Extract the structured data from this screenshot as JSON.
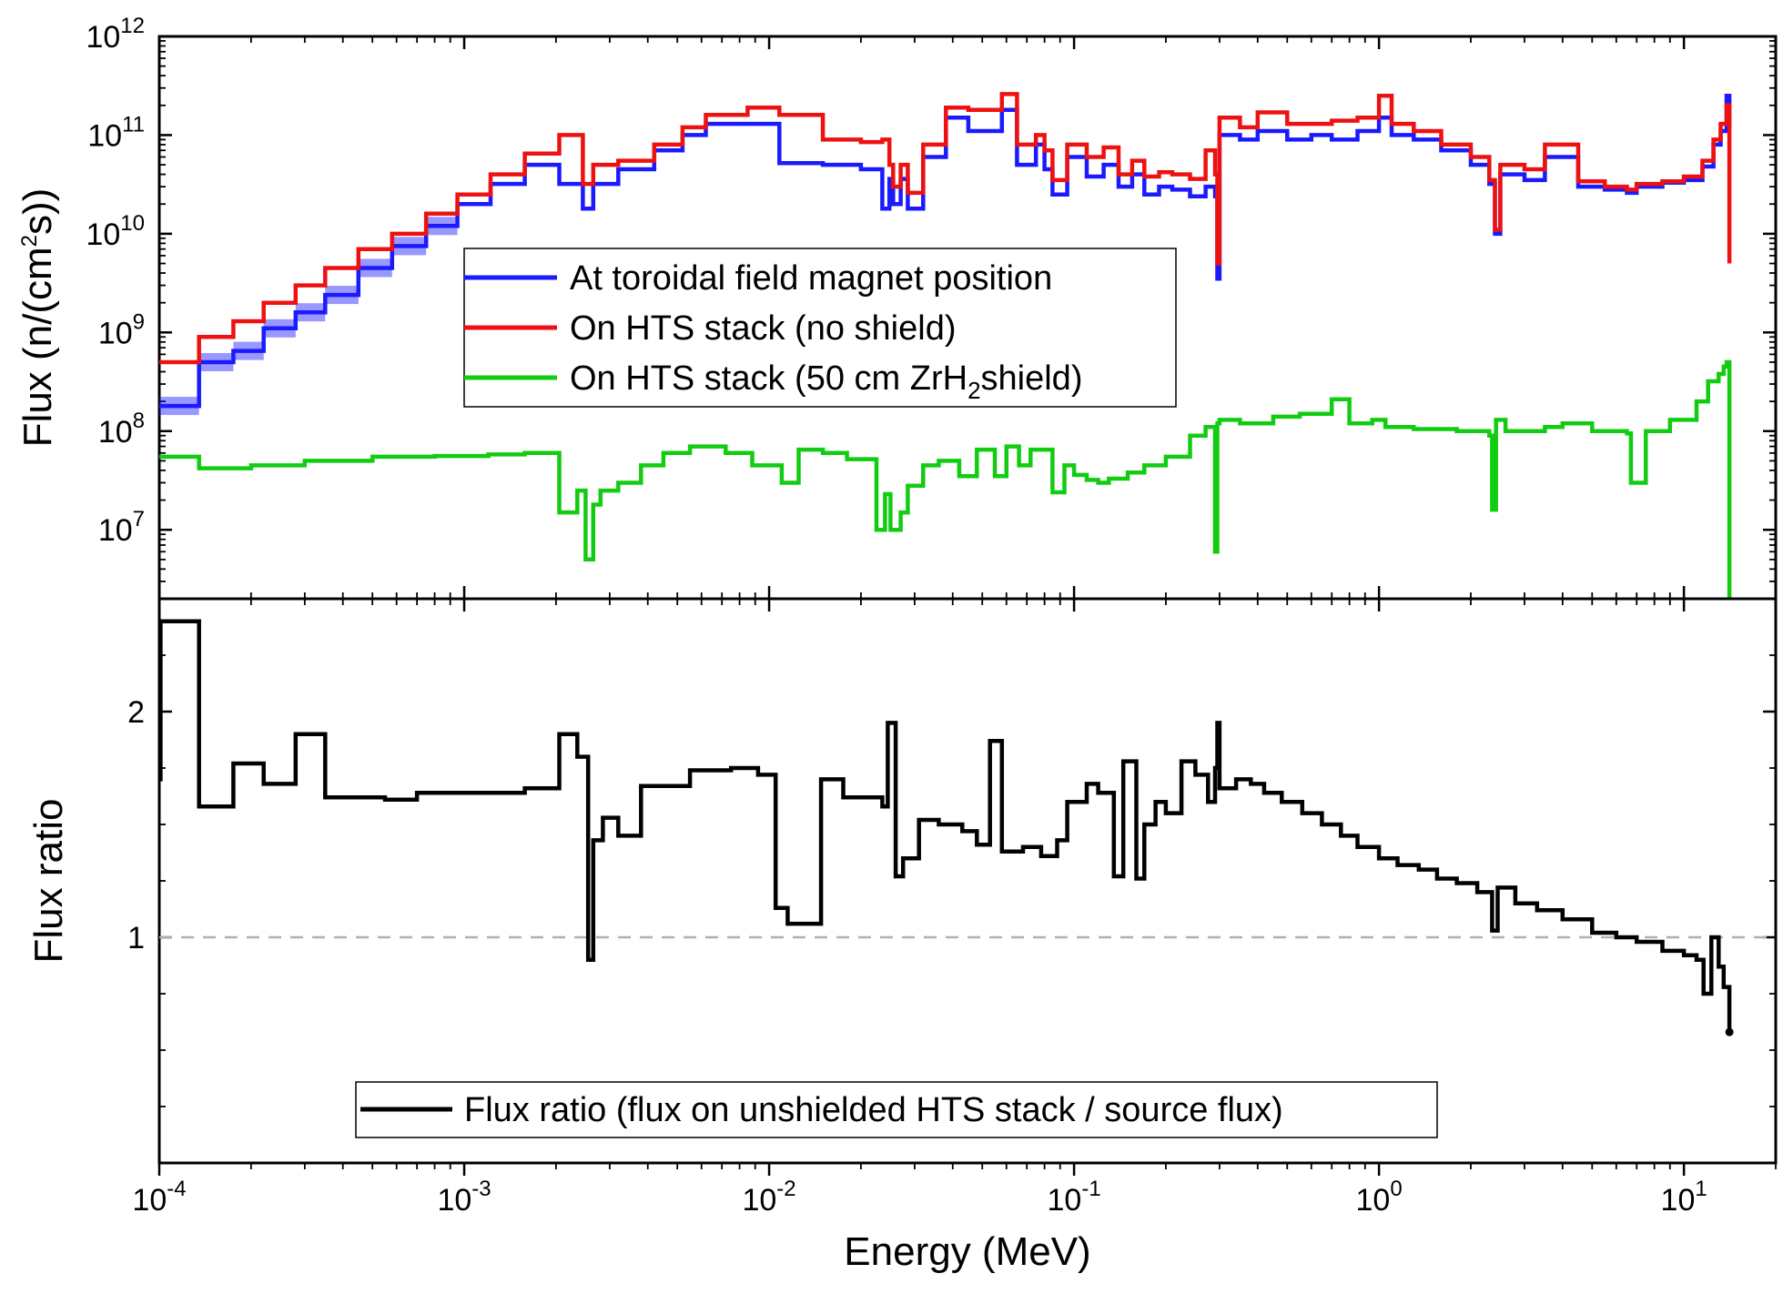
{
  "chart_data": [
    {
      "type": "line",
      "panel": "top",
      "ylabel_parts": [
        "Flux (n/(cm",
        "2",
        "s))"
      ],
      "y_scale": "log",
      "ylim": [
        2000000.0,
        1000000000000.0
      ],
      "y_tick_exponents": [
        "12",
        "11",
        "10",
        "9",
        "8",
        "7"
      ],
      "y_tick_values": [
        1000000000000.0,
        100000000000.0,
        10000000000.0,
        1000000000.0,
        100000000.0,
        10000000.0
      ],
      "legend_position": "center",
      "series": [
        {
          "name": "At toroidal field magnet position",
          "color": "#1a1aff",
          "x": [
            0.0001,
            0.000135,
            0.000175,
            0.00022,
            0.00028,
            0.00035,
            0.00045,
            0.00058,
            0.00075,
            0.00095,
            0.00122,
            0.00158,
            0.00205,
            0.00245,
            0.00265,
            0.0032,
            0.0042,
            0.0052,
            0.0062,
            0.0085,
            0.0108,
            0.015,
            0.02,
            0.0235,
            0.0248,
            0.0255,
            0.027,
            0.0285,
            0.032,
            0.038,
            0.045,
            0.058,
            0.065,
            0.075,
            0.08,
            0.085,
            0.095,
            0.11,
            0.125,
            0.14,
            0.155,
            0.17,
            0.19,
            0.21,
            0.24,
            0.27,
            0.29,
            0.295,
            0.3,
            0.35,
            0.4,
            0.5,
            0.6,
            0.7,
            0.85,
            1.0,
            1.1,
            1.3,
            1.6,
            2.0,
            2.3,
            2.4,
            2.5,
            3.0,
            3.5,
            4.5,
            5.5,
            6.5,
            7.0,
            8.5,
            10.0,
            11.5,
            12.5,
            13.2,
            13.8,
            14.1
          ],
          "y": [
            180000000.0,
            500000000.0,
            650000000.0,
            1100000000.0,
            1600000000.0,
            2400000000.0,
            4500000000.0,
            7500000000.0,
            12000000000.0,
            20000000000.0,
            32000000000.0,
            50000000000.0,
            32000000000.0,
            18000000000.0,
            32000000000.0,
            45000000000.0,
            70000000000.0,
            100000000000.0,
            130000000000.0,
            130000000000.0,
            52000000000.0,
            50000000000.0,
            45000000000.0,
            18000000000.0,
            36000000000.0,
            20000000000.0,
            36000000000.0,
            18000000000.0,
            60000000000.0,
            150000000000.0,
            110000000000.0,
            180000000000.0,
            50000000000.0,
            80000000000.0,
            45000000000.0,
            25000000000.0,
            60000000000.0,
            38000000000.0,
            50000000000.0,
            30000000000.0,
            40000000000.0,
            25000000000.0,
            30000000000.0,
            28000000000.0,
            24000000000.0,
            30000000000.0,
            24000000000.0,
            3500000000.0,
            100000000000.0,
            90000000000.0,
            110000000000.0,
            90000000000.0,
            100000000000.0,
            90000000000.0,
            110000000000.0,
            150000000000.0,
            100000000000.0,
            90000000000.0,
            70000000000.0,
            50000000000.0,
            32000000000.0,
            10000000000.0,
            40000000000.0,
            35000000000.0,
            60000000000.0,
            30000000000.0,
            28000000000.0,
            26000000000.0,
            30000000000.0,
            33000000000.0,
            35000000000.0,
            48000000000.0,
            80000000000.0,
            110000000000.0,
            250000000000.0,
            120000000000.0
          ]
        },
        {
          "name": "On HTS stack (no shield)",
          "color": "#ee1111",
          "x": [
            0.0001,
            0.000135,
            0.000175,
            0.00022,
            0.00028,
            0.00035,
            0.00045,
            0.00058,
            0.00075,
            0.00095,
            0.00122,
            0.00158,
            0.00205,
            0.00245,
            0.00265,
            0.0032,
            0.0042,
            0.0052,
            0.0062,
            0.0085,
            0.0108,
            0.015,
            0.02,
            0.0235,
            0.0248,
            0.0255,
            0.027,
            0.0285,
            0.032,
            0.038,
            0.045,
            0.058,
            0.065,
            0.075,
            0.08,
            0.085,
            0.095,
            0.11,
            0.125,
            0.14,
            0.155,
            0.17,
            0.19,
            0.21,
            0.24,
            0.27,
            0.29,
            0.295,
            0.3,
            0.35,
            0.4,
            0.5,
            0.6,
            0.7,
            0.85,
            1.0,
            1.1,
            1.3,
            1.6,
            2.0,
            2.3,
            2.4,
            2.5,
            3.0,
            3.5,
            4.5,
            5.5,
            6.5,
            7.0,
            8.5,
            10.0,
            11.5,
            12.5,
            13.2,
            13.8,
            14.1
          ],
          "y": [
            500000000.0,
            900000000.0,
            1300000000.0,
            2000000000.0,
            3000000000.0,
            4500000000.0,
            7000000000.0,
            10000000000.0,
            16000000000.0,
            25000000000.0,
            40000000000.0,
            65000000000.0,
            100000000000.0,
            32000000000.0,
            50000000000.0,
            55000000000.0,
            80000000000.0,
            120000000000.0,
            160000000000.0,
            190000000000.0,
            160000000000.0,
            90000000000.0,
            85000000000.0,
            90000000000.0,
            50000000000.0,
            30000000000.0,
            50000000000.0,
            26000000000.0,
            80000000000.0,
            190000000000.0,
            180000000000.0,
            260000000000.0,
            80000000000.0,
            100000000000.0,
            70000000000.0,
            35000000000.0,
            80000000000.0,
            60000000000.0,
            75000000000.0,
            40000000000.0,
            55000000000.0,
            38000000000.0,
            42000000000.0,
            40000000000.0,
            36000000000.0,
            70000000000.0,
            40000000000.0,
            5000000000.0,
            150000000000.0,
            120000000000.0,
            170000000000.0,
            130000000000.0,
            130000000000.0,
            140000000000.0,
            150000000000.0,
            250000000000.0,
            130000000000.0,
            110000000000.0,
            80000000000.0,
            60000000000.0,
            35000000000.0,
            11000000000.0,
            50000000000.0,
            45000000000.0,
            80000000000.0,
            34000000000.0,
            30000000000.0,
            28000000000.0,
            32000000000.0,
            34000000000.0,
            38000000000.0,
            55000000000.0,
            90000000000.0,
            130000000000.0,
            200000000000.0,
            5000000000.0
          ]
        },
        {
          "name_parts": [
            "On HTS stack (50 cm ZrH",
            "2",
            "shield)"
          ],
          "color": "#11cc11",
          "x": [
            0.0001,
            0.000135,
            0.0002,
            0.0003,
            0.0005,
            0.0008,
            0.0012,
            0.00158,
            0.00205,
            0.00235,
            0.0025,
            0.00265,
            0.0028,
            0.0032,
            0.0038,
            0.0045,
            0.0055,
            0.0072,
            0.0088,
            0.011,
            0.0125,
            0.015,
            0.018,
            0.0225,
            0.024,
            0.025,
            0.027,
            0.0285,
            0.032,
            0.036,
            0.042,
            0.048,
            0.055,
            0.06,
            0.066,
            0.072,
            0.085,
            0.093,
            0.1,
            0.11,
            0.12,
            0.13,
            0.15,
            0.17,
            0.2,
            0.24,
            0.27,
            0.29,
            0.295,
            0.3,
            0.35,
            0.45,
            0.55,
            0.7,
            0.8,
            0.95,
            1.05,
            1.3,
            1.8,
            2.3,
            2.35,
            2.42,
            2.6,
            3.5,
            4.0,
            5.0,
            6.5,
            6.7,
            7.5,
            9.0,
            11.0,
            12.0,
            13.0,
            13.5,
            13.8,
            14.1
          ],
          "y": [
            55000000.0,
            42000000.0,
            45000000.0,
            50000000.0,
            55000000.0,
            56000000.0,
            58000000.0,
            60000000.0,
            15000000.0,
            25000000.0,
            5000000.0,
            18000000.0,
            25000000.0,
            30000000.0,
            45000000.0,
            60000000.0,
            70000000.0,
            60000000.0,
            45000000.0,
            30000000.0,
            65000000.0,
            60000000.0,
            52000000.0,
            10000000.0,
            23000000.0,
            10000000.0,
            15000000.0,
            28000000.0,
            45000000.0,
            50000000.0,
            35000000.0,
            65000000.0,
            35000000.0,
            70000000.0,
            45000000.0,
            65000000.0,
            24000000.0,
            45000000.0,
            36000000.0,
            32000000.0,
            30000000.0,
            33000000.0,
            38000000.0,
            45000000.0,
            55000000.0,
            90000000.0,
            110000000.0,
            6000000.0,
            120000000.0,
            130000000.0,
            120000000.0,
            140000000.0,
            150000000.0,
            210000000.0,
            120000000.0,
            130000000.0,
            110000000.0,
            105000000.0,
            100000000.0,
            90000000.0,
            16000000.0,
            130000000.0,
            100000000.0,
            110000000.0,
            120000000.0,
            100000000.0,
            95000000.0,
            30000000.0,
            100000000.0,
            130000000.0,
            200000000.0,
            320000000.0,
            380000000.0,
            450000000.0,
            500000000.0,
            2000000.0
          ]
        }
      ]
    },
    {
      "type": "line",
      "panel": "bottom",
      "xlabel": "Energy (MeV)",
      "ylabel": "Flux ratio",
      "x_scale": "log",
      "xlim": [
        0.0001,
        20
      ],
      "x_tick_exponents": [
        "-4",
        "-3",
        "-2",
        "-1",
        "0",
        "1"
      ],
      "x_tick_values": [
        0.0001,
        0.001,
        0.01,
        0.1,
        1,
        10
      ],
      "ylim": [
        0.0,
        2.5
      ],
      "y_tick_labels": [
        "2",
        "1"
      ],
      "y_tick_values": [
        2,
        1
      ],
      "reference_line": 1.0,
      "legend_position": "bottom-center",
      "series": [
        {
          "name": "Flux ratio (flux on unshielded HTS stack / source flux)",
          "color": "#000000",
          "x": [
            0.0001,
            0.000101,
            0.000135,
            0.000175,
            0.00022,
            0.00028,
            0.00035,
            0.00055,
            0.0007,
            0.00158,
            0.00205,
            0.00235,
            0.00255,
            0.00265,
            0.00285,
            0.0032,
            0.0038,
            0.0055,
            0.0075,
            0.0092,
            0.0105,
            0.0115,
            0.0148,
            0.0175,
            0.0235,
            0.0245,
            0.026,
            0.0275,
            0.031,
            0.036,
            0.043,
            0.048,
            0.053,
            0.058,
            0.068,
            0.078,
            0.088,
            0.095,
            0.11,
            0.12,
            0.135,
            0.145,
            0.16,
            0.17,
            0.185,
            0.2,
            0.225,
            0.25,
            0.275,
            0.29,
            0.295,
            0.3,
            0.34,
            0.38,
            0.42,
            0.48,
            0.56,
            0.65,
            0.75,
            0.85,
            1.0,
            1.15,
            1.35,
            1.55,
            1.8,
            2.1,
            2.35,
            2.45,
            2.8,
            3.3,
            4.0,
            5.0,
            6.0,
            7.0,
            8.5,
            10.0,
            11.0,
            11.6,
            12.3,
            13.0,
            13.5,
            14.1
          ],
          "y": [
            1.7,
            2.4,
            1.58,
            1.77,
            1.68,
            1.9,
            1.62,
            1.61,
            1.64,
            1.66,
            1.9,
            1.8,
            0.9,
            1.43,
            1.53,
            1.45,
            1.67,
            1.74,
            1.75,
            1.72,
            1.13,
            1.06,
            1.7,
            1.62,
            1.58,
            1.95,
            1.27,
            1.35,
            1.52,
            1.5,
            1.47,
            1.41,
            1.87,
            1.38,
            1.4,
            1.36,
            1.43,
            1.6,
            1.68,
            1.64,
            1.27,
            1.78,
            1.26,
            1.5,
            1.6,
            1.55,
            1.78,
            1.72,
            1.6,
            1.75,
            1.95,
            1.66,
            1.7,
            1.68,
            1.64,
            1.6,
            1.55,
            1.5,
            1.45,
            1.4,
            1.35,
            1.32,
            1.3,
            1.26,
            1.24,
            1.2,
            1.03,
            1.22,
            1.15,
            1.12,
            1.08,
            1.02,
            1.0,
            0.98,
            0.94,
            0.92,
            0.9,
            0.75,
            1.0,
            0.87,
            0.78,
            0.58
          ]
        }
      ]
    }
  ]
}
